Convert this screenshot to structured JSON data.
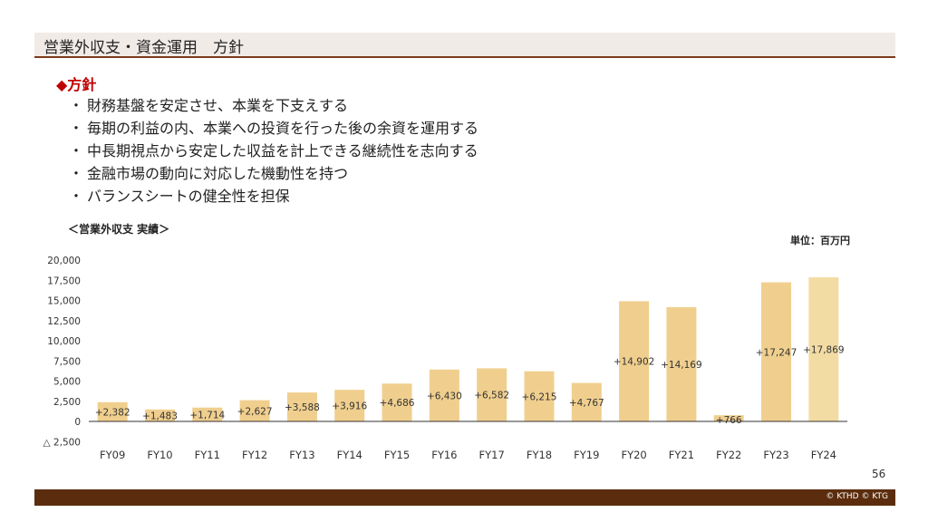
{
  "header": {
    "title": "営業外収支・資金運用　方針"
  },
  "policy": {
    "heading": "◆方針",
    "bullet_mark": "・",
    "items": [
      "財務基盤を安定させ、本業を下支えする",
      "毎期の利益の内、本業への投資を行った後の余資を運用する",
      "中長期視点から安定した収益を計上できる継続性を志向する",
      "金融市場の動向に対応した機動性を持つ",
      "バランスシートの健全性を担保"
    ]
  },
  "chart_section_title": "＜営業外収支 実績＞",
  "unit_label": "単位：百万円",
  "chart_data": {
    "type": "bar",
    "title": "",
    "xlabel": "",
    "ylabel": "",
    "categories": [
      "FY09",
      "FY10",
      "FY11",
      "FY12",
      "FY13",
      "FY14",
      "FY15",
      "FY16",
      "FY17",
      "FY18",
      "FY19",
      "FY20",
      "FY21",
      "FY22",
      "FY23",
      "FY24"
    ],
    "values": [
      2382,
      1483,
      1714,
      2627,
      3588,
      3916,
      4686,
      6430,
      6582,
      6215,
      4767,
      14902,
      14169,
      766,
      17247,
      17869
    ],
    "data_labels": [
      "+2,382",
      "+1,483",
      "+1,714",
      "+2,627",
      "+3,588",
      "+3,916",
      "+4,686",
      "+6,430",
      "+6,582",
      "+6,215",
      "+4,767",
      "+14,902",
      "+14,169",
      "+766",
      "+17,247",
      "+17,869"
    ],
    "ylim": [
      -2500,
      20000
    ],
    "yticks": [
      -2500,
      0,
      2500,
      5000,
      7500,
      10000,
      12500,
      15000,
      17500,
      20000
    ],
    "ytick_labels": [
      "△ 2,500",
      "0",
      "2,500",
      "5,000",
      "7,500",
      "10,000",
      "12,500",
      "15,000",
      "17,500",
      "20,000"
    ],
    "grid": false,
    "bar_color": "#f0cf8e",
    "last_bar_color": "#f3dca4",
    "axis_color": "#333333"
  },
  "page_number": "56",
  "footer": {
    "copyright": "© KTHD © KTG",
    "bar_color": "#5b2d0e"
  }
}
